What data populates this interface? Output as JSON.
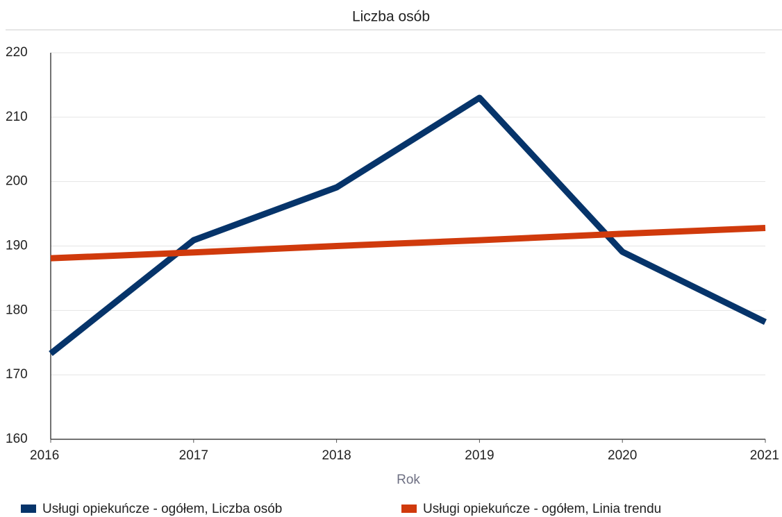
{
  "chart_data": {
    "type": "line",
    "title": "Liczba osób",
    "x_label": "Rok",
    "x": [
      2016,
      2017,
      2018,
      2019,
      2020,
      2021
    ],
    "xlim": [
      2016,
      2021
    ],
    "xticks": [
      2016,
      2017,
      2018,
      2019,
      2020,
      2021
    ],
    "ylim": [
      160,
      220
    ],
    "yticks": [
      160,
      170,
      180,
      190,
      200,
      210,
      220
    ],
    "grid": true,
    "legend": "bottom",
    "series": [
      {
        "name": "Usługi opiekuńcze - ogółem, Liczba osób",
        "color": "#06346a",
        "values": [
          173.3,
          190.9,
          199.1,
          213.0,
          189.1,
          178.2
        ]
      },
      {
        "name": "Usługi opiekuńcze - ogółem, Linia trendu",
        "color": "#d03a0c",
        "values": [
          188.1,
          189.0,
          190.0,
          190.9,
          191.9,
          192.8
        ]
      }
    ]
  }
}
